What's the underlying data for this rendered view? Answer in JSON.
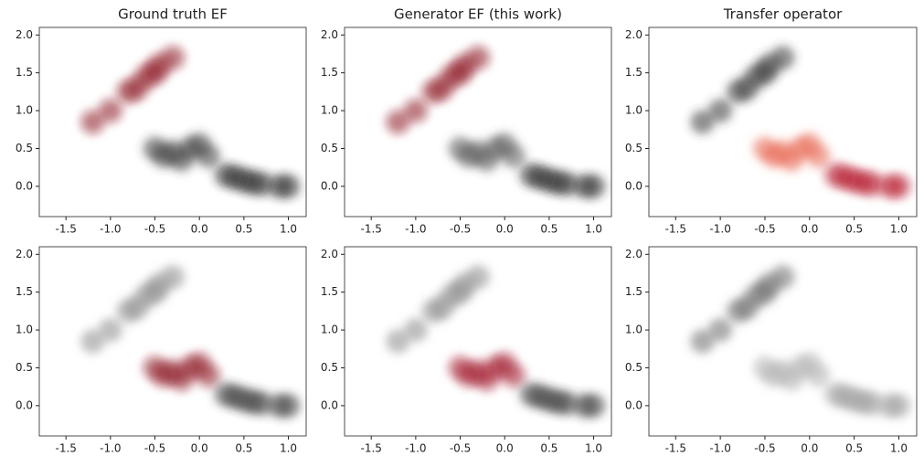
{
  "chart_data": [
    {
      "type": "scatter",
      "title": "Ground truth EF",
      "xlim": [
        -1.8,
        1.2
      ],
      "ylim": [
        -0.4,
        2.1
      ],
      "xticks": [
        -1.5,
        -1.0,
        -0.5,
        0.0,
        0.5,
        1.0
      ],
      "yticks": [
        0.0,
        0.5,
        1.0,
        1.5,
        2.0
      ],
      "series": [
        {
          "color": "#8b0d22",
          "x": [
            -1.0,
            -0.8,
            -0.6,
            -0.45,
            -0.3,
            -0.7,
            -0.5,
            -1.2
          ],
          "y": [
            1.0,
            1.25,
            1.45,
            1.6,
            1.7,
            1.3,
            1.5,
            0.85
          ]
        },
        {
          "color": "#3a3a3a",
          "x": [
            -0.5,
            -0.3,
            -0.1,
            0.1,
            -0.2,
            0.0,
            -0.4
          ],
          "y": [
            0.5,
            0.45,
            0.5,
            0.4,
            0.35,
            0.55,
            0.4
          ]
        },
        {
          "color": "#2a2a2a",
          "x": [
            0.3,
            0.5,
            0.7,
            0.9,
            0.6,
            0.4,
            1.0
          ],
          "y": [
            0.15,
            0.08,
            0.03,
            0.0,
            0.05,
            0.12,
            0.0
          ]
        }
      ]
    },
    {
      "type": "scatter",
      "title": "Generator EF (this work)",
      "xlim": [
        -1.8,
        1.2
      ],
      "ylim": [
        -0.4,
        2.1
      ],
      "xticks": [
        -1.5,
        -1.0,
        -0.5,
        0.0,
        0.5,
        1.0
      ],
      "yticks": [
        0.0,
        0.5,
        1.0,
        1.5,
        2.0
      ],
      "series": [
        {
          "color": "#8b0d22",
          "x": [
            -1.0,
            -0.8,
            -0.6,
            -0.45,
            -0.3,
            -0.7,
            -0.5,
            -1.2
          ],
          "y": [
            1.0,
            1.25,
            1.45,
            1.6,
            1.7,
            1.3,
            1.5,
            0.85
          ]
        },
        {
          "color": "#555555",
          "x": [
            -0.5,
            -0.3,
            -0.1,
            0.1,
            -0.2,
            0.0,
            -0.4
          ],
          "y": [
            0.5,
            0.45,
            0.5,
            0.4,
            0.35,
            0.55,
            0.4
          ]
        },
        {
          "color": "#2a2a2a",
          "x": [
            0.3,
            0.5,
            0.7,
            0.9,
            0.6,
            0.4,
            1.0
          ],
          "y": [
            0.15,
            0.08,
            0.03,
            0.0,
            0.05,
            0.12,
            0.0
          ]
        }
      ]
    },
    {
      "type": "scatter",
      "title": "Transfer operator",
      "xlim": [
        -1.8,
        1.2
      ],
      "ylim": [
        -0.4,
        2.1
      ],
      "xticks": [
        -1.5,
        -1.0,
        -0.5,
        0.0,
        0.5,
        1.0
      ],
      "yticks": [
        0.0,
        0.5,
        1.0,
        1.5,
        2.0
      ],
      "series": [
        {
          "color": "#333333",
          "x": [
            -1.0,
            -0.8,
            -0.6,
            -0.45,
            -0.3,
            -0.7,
            -0.5,
            -1.2
          ],
          "y": [
            1.0,
            1.25,
            1.45,
            1.6,
            1.7,
            1.3,
            1.5,
            0.85
          ]
        },
        {
          "color": "#e8654f",
          "x": [
            -0.5,
            -0.3,
            -0.1,
            0.1,
            -0.2,
            0.0,
            -0.4
          ],
          "y": [
            0.5,
            0.45,
            0.5,
            0.4,
            0.35,
            0.55,
            0.4
          ]
        },
        {
          "color": "#b5172b",
          "x": [
            0.3,
            0.5,
            0.7,
            0.9,
            0.6,
            0.4,
            1.0
          ],
          "y": [
            0.15,
            0.08,
            0.03,
            0.0,
            0.05,
            0.12,
            0.0
          ]
        }
      ]
    },
    {
      "type": "scatter",
      "xlim": [
        -1.8,
        1.2
      ],
      "ylim": [
        -0.4,
        2.1
      ],
      "xticks": [
        -1.5,
        -1.0,
        -0.5,
        0.0,
        0.5,
        1.0
      ],
      "yticks": [
        0.0,
        0.5,
        1.0,
        1.5,
        2.0
      ],
      "series": [
        {
          "color": "#8a8a8a",
          "x": [
            -1.0,
            -0.8,
            -0.6,
            -0.45,
            -0.3,
            -0.7,
            -0.5,
            -1.2
          ],
          "y": [
            1.0,
            1.25,
            1.45,
            1.6,
            1.7,
            1.3,
            1.5,
            0.85
          ]
        },
        {
          "color": "#8b0d22",
          "x": [
            -0.5,
            -0.3,
            -0.1,
            0.1,
            -0.2,
            0.0,
            -0.4
          ],
          "y": [
            0.5,
            0.45,
            0.5,
            0.4,
            0.35,
            0.55,
            0.4
          ]
        },
        {
          "color": "#3a3a3a",
          "x": [
            0.3,
            0.5,
            0.7,
            0.9,
            0.6,
            0.4,
            1.0
          ],
          "y": [
            0.15,
            0.08,
            0.03,
            0.0,
            0.05,
            0.12,
            0.0
          ]
        }
      ]
    },
    {
      "type": "scatter",
      "xlim": [
        -1.8,
        1.2
      ],
      "ylim": [
        -0.4,
        2.1
      ],
      "xticks": [
        -1.5,
        -1.0,
        -0.5,
        0.0,
        0.5,
        1.0
      ],
      "yticks": [
        0.0,
        0.5,
        1.0,
        1.5,
        2.0
      ],
      "series": [
        {
          "color": "#8a8a8a",
          "x": [
            -1.0,
            -0.8,
            -0.6,
            -0.45,
            -0.3,
            -0.7,
            -0.5,
            -1.2
          ],
          "y": [
            1.0,
            1.25,
            1.45,
            1.6,
            1.7,
            1.3,
            1.5,
            0.85
          ]
        },
        {
          "color": "#a0102a",
          "x": [
            -0.5,
            -0.3,
            -0.1,
            0.1,
            -0.2,
            0.0,
            -0.4
          ],
          "y": [
            0.5,
            0.45,
            0.5,
            0.4,
            0.35,
            0.55,
            0.4
          ]
        },
        {
          "color": "#3a3a3a",
          "x": [
            0.3,
            0.5,
            0.7,
            0.9,
            0.6,
            0.4,
            1.0
          ],
          "y": [
            0.15,
            0.08,
            0.03,
            0.0,
            0.05,
            0.12,
            0.0
          ]
        }
      ]
    },
    {
      "type": "scatter",
      "xlim": [
        -1.8,
        1.2
      ],
      "ylim": [
        -0.4,
        2.1
      ],
      "xticks": [
        -1.5,
        -1.0,
        -0.5,
        0.0,
        0.5,
        1.0
      ],
      "yticks": [
        0.0,
        0.5,
        1.0,
        1.5,
        2.0
      ],
      "series": [
        {
          "color": "#6a6a6a",
          "x": [
            -1.0,
            -0.8,
            -0.6,
            -0.45,
            -0.3,
            -0.7,
            -0.5,
            -1.2
          ],
          "y": [
            1.0,
            1.25,
            1.45,
            1.6,
            1.7,
            1.3,
            1.5,
            0.85
          ]
        },
        {
          "color": "#b0b0b0",
          "x": [
            -0.5,
            -0.3,
            -0.1,
            0.1,
            -0.2,
            0.0,
            -0.4
          ],
          "y": [
            0.5,
            0.45,
            0.5,
            0.4,
            0.35,
            0.55,
            0.4
          ]
        },
        {
          "color": "#9a9a9a",
          "x": [
            0.3,
            0.5,
            0.7,
            0.9,
            0.6,
            0.4,
            1.0
          ],
          "y": [
            0.15,
            0.08,
            0.03,
            0.0,
            0.05,
            0.12,
            0.0
          ]
        }
      ]
    }
  ]
}
